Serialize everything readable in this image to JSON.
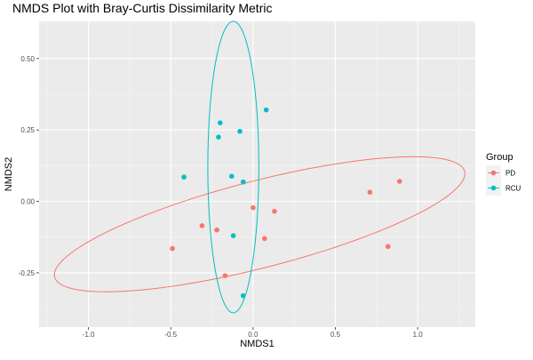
{
  "chart_data": {
    "type": "scatter",
    "title": "NMDS Plot with Bray-Curtis Dissimilarity Metric",
    "xlabel": "NMDS1",
    "ylabel": "NMDS2",
    "xlim": [
      -1.3,
      1.35
    ],
    "ylim": [
      -0.44,
      0.63
    ],
    "x_ticks": [
      -1.0,
      -0.5,
      0.0,
      0.5,
      1.0
    ],
    "x_tick_labels": [
      "-1.0",
      "-0.5",
      "0.0",
      "0.5",
      "1.0"
    ],
    "y_ticks": [
      -0.25,
      0.0,
      0.25,
      0.5
    ],
    "y_tick_labels": [
      "-0.25",
      "0.00",
      "0.25",
      "0.50"
    ],
    "grid": true,
    "background": "#ebebeb",
    "legend": {
      "title": "Group",
      "position": "right",
      "entries": [
        "PD",
        "RCU"
      ]
    },
    "series": [
      {
        "name": "PD",
        "color": "#f8766d",
        "points": [
          {
            "x": -0.49,
            "y": -0.165
          },
          {
            "x": -0.31,
            "y": -0.085
          },
          {
            "x": -0.22,
            "y": -0.1
          },
          {
            "x": -0.17,
            "y": -0.26
          },
          {
            "x": 0.0,
            "y": -0.022
          },
          {
            "x": 0.13,
            "y": -0.035
          },
          {
            "x": 0.07,
            "y": -0.13
          },
          {
            "x": 0.71,
            "y": 0.032
          },
          {
            "x": 0.89,
            "y": 0.07
          },
          {
            "x": 0.82,
            "y": -0.158
          }
        ],
        "ellipse": {
          "cx": 0.04,
          "cy": -0.08,
          "rx": 1.26,
          "ry": 0.155,
          "angle_deg": 8.2
        }
      },
      {
        "name": "RCU",
        "color": "#00bfc4",
        "points": [
          {
            "x": -0.42,
            "y": 0.085
          },
          {
            "x": -0.2,
            "y": 0.275
          },
          {
            "x": -0.21,
            "y": 0.225
          },
          {
            "x": -0.08,
            "y": 0.245
          },
          {
            "x": 0.08,
            "y": 0.32
          },
          {
            "x": -0.13,
            "y": 0.088
          },
          {
            "x": -0.06,
            "y": 0.068
          },
          {
            "x": -0.12,
            "y": -0.12
          },
          {
            "x": -0.06,
            "y": -0.33
          }
        ],
        "ellipse": {
          "cx": -0.12,
          "cy": 0.12,
          "rx": 0.155,
          "ry": 0.51,
          "angle_deg": 0
        }
      }
    ]
  }
}
